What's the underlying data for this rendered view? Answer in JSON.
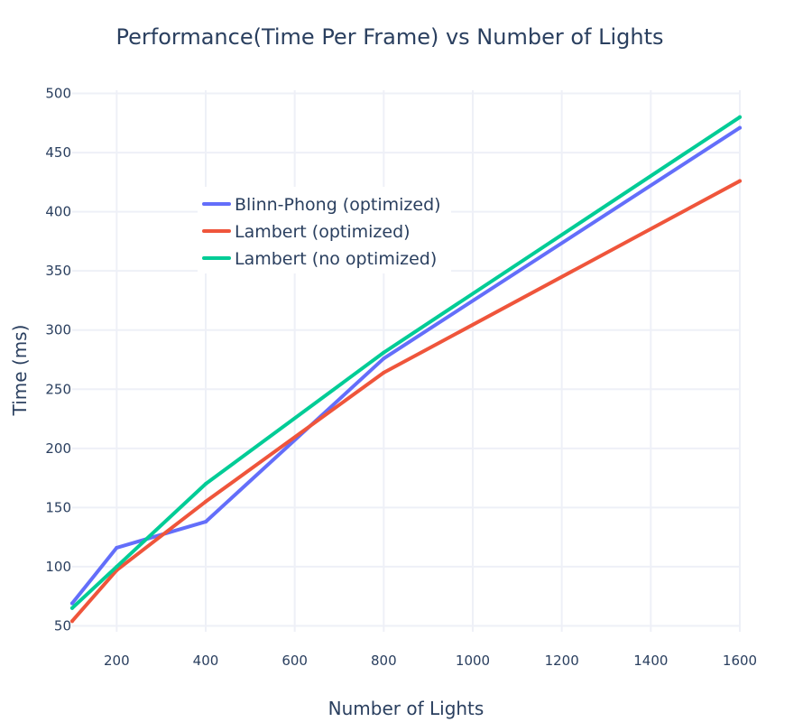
{
  "chart_data": {
    "type": "line",
    "title": "Performance(Time Per Frame)  vs Number of Lights",
    "xlabel": "Number of Lights",
    "ylabel": "Time (ms)",
    "xlim": [
      100,
      1600
    ],
    "ylim": [
      45,
      505
    ],
    "x_ticks": [
      200,
      400,
      600,
      800,
      1000,
      1200,
      1400,
      1600
    ],
    "y_ticks": [
      50,
      100,
      150,
      200,
      250,
      300,
      350,
      400,
      450,
      500
    ],
    "grid": true,
    "legend_position": "inside-top-left",
    "series": [
      {
        "name": "Blinn-Phong (optimized)",
        "color": "#636efa",
        "x": [
          100,
          200,
          400,
          800,
          1600
        ],
        "y": [
          69,
          116,
          138,
          276,
          471
        ]
      },
      {
        "name": "Lambert (optimized)",
        "color": "#ef553b",
        "x": [
          100,
          200,
          400,
          800,
          1600
        ],
        "y": [
          54,
          97,
          155,
          264,
          426
        ]
      },
      {
        "name": "Lambert (no optimized)",
        "color": "#00cc96",
        "x": [
          100,
          200,
          400,
          800,
          1600
        ],
        "y": [
          65,
          100,
          170,
          281,
          480
        ]
      }
    ]
  }
}
